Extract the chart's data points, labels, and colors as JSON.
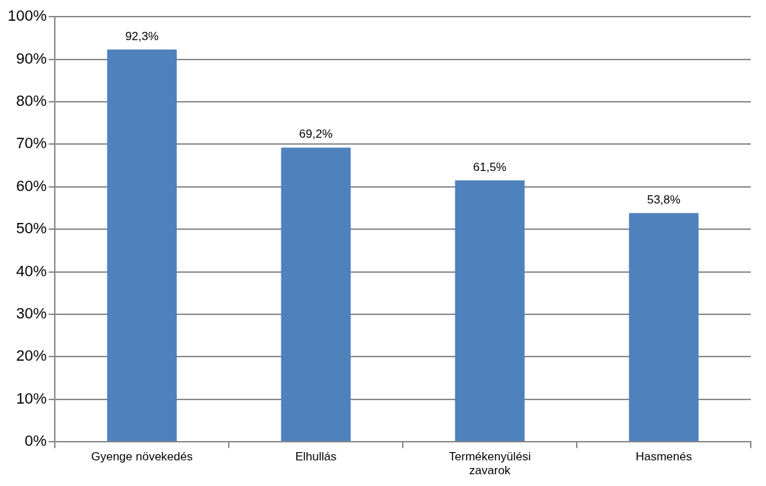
{
  "chart_data": {
    "type": "bar",
    "categories": [
      "Gyenge növekedés",
      "Elhullás",
      "Termékenyülési zavarok",
      "Hasmenés"
    ],
    "values": [
      92.3,
      69.2,
      61.5,
      53.8
    ],
    "value_labels": [
      "92,3%",
      "69,2%",
      "61,5%",
      "53,8%"
    ],
    "color": "#4f81bd",
    "ylim": [
      0,
      100
    ],
    "yticks": [
      {
        "value": 0,
        "label": "0%"
      },
      {
        "value": 10,
        "label": "10%"
      },
      {
        "value": 20,
        "label": "20%"
      },
      {
        "value": 30,
        "label": "30%"
      },
      {
        "value": 40,
        "label": "40%"
      },
      {
        "value": 50,
        "label": "50%"
      },
      {
        "value": 60,
        "label": "60%"
      },
      {
        "value": 70,
        "label": "70%"
      },
      {
        "value": 80,
        "label": "80%"
      },
      {
        "value": 90,
        "label": "90%"
      },
      {
        "value": 100,
        "label": "100%"
      }
    ],
    "grid": "y"
  }
}
